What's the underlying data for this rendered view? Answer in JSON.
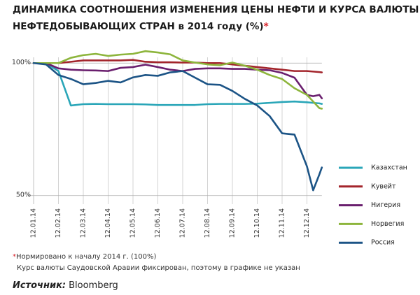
{
  "chart_data": {
    "type": "line",
    "title": [
      "ДИНАМИКА СООТНОШЕНИЯ ИЗМЕНЕНИЯ ЦЕНЫ НЕФТИ И КУРСА ВАЛЮТЫ",
      "НЕФТЕДОБЫВАЮЩИХ СТРАН в 2014 году (%)"
    ],
    "title_mark": "*",
    "footnote_mark": "*",
    "footnote": "Нормировано к началу 2014 г. (100%)",
    "note": "Курс валюты Саудовской Аравии фиксирован, поэтому в графике не указан",
    "source_label": "Источник:",
    "source": "Bloomberg",
    "x": [
      0,
      0.5,
      1,
      1.5,
      2,
      2.5,
      3,
      3.5,
      4,
      4.5,
      5,
      5.5,
      6,
      6.5,
      7,
      7.5,
      8,
      8.5,
      9,
      9.5,
      10,
      10.5,
      11,
      11.25,
      11.5,
      11.6
    ],
    "xlim": [
      0,
      11.6
    ],
    "xticks": [
      {
        "value": 0,
        "label": "12.01.14"
      },
      {
        "value": 1,
        "label": "12.02.14"
      },
      {
        "value": 2,
        "label": "12.03.14"
      },
      {
        "value": 3,
        "label": "12.04.14"
      },
      {
        "value": 4,
        "label": "12.05.14"
      },
      {
        "value": 5,
        "label": "12.06.14"
      },
      {
        "value": 6,
        "label": "12.07.14"
      },
      {
        "value": 7,
        "label": "12.08.14"
      },
      {
        "value": 8,
        "label": "12.09.14"
      },
      {
        "value": 9,
        "label": "12.10.14"
      },
      {
        "value": 10,
        "label": "12.11.14"
      },
      {
        "value": 11,
        "label": "12.12.14"
      }
    ],
    "ylim": [
      47.3,
      105
    ],
    "yticks": [
      {
        "value": 100,
        "label": "100%"
      },
      {
        "value": 50,
        "label": "50%"
      }
    ],
    "grid": true,
    "legend": "right",
    "series": [
      {
        "name": "Казахстан",
        "color": "#2aa6b8",
        "values": [
          100,
          100,
          97,
          84,
          84.5,
          84.6,
          84.5,
          84.5,
          84.5,
          84.4,
          84.2,
          84.2,
          84.2,
          84.2,
          84.5,
          84.6,
          84.6,
          84.6,
          84.7,
          85,
          85.3,
          85.5,
          85.2,
          85,
          84.8,
          84.6
        ]
      },
      {
        "name": "Кувейт",
        "color": "#a3252c",
        "values": [
          100,
          100,
          100,
          100.5,
          101,
          101,
          101,
          101,
          101.2,
          100.5,
          100.3,
          100.3,
          100.2,
          100.2,
          100,
          100,
          99.5,
          99,
          98.5,
          98,
          97.5,
          97,
          97,
          96.8,
          96.6,
          96.5
        ]
      },
      {
        "name": "Нигерия",
        "color": "#6a1f6e",
        "values": [
          100,
          100,
          98,
          97.5,
          97.3,
          97.2,
          97,
          98.2,
          98.5,
          99.4,
          98.5,
          97.5,
          97,
          97.8,
          98,
          98,
          97.8,
          97.8,
          97.5,
          97.3,
          96.3,
          94.5,
          88,
          87.5,
          88,
          86.7
        ]
      },
      {
        "name": "Норвегия",
        "color": "#8db53c",
        "values": [
          100,
          100,
          100,
          102,
          103,
          103.5,
          102.7,
          103.2,
          103.5,
          104.5,
          104,
          103.3,
          101,
          100.2,
          99.5,
          99.2,
          100.2,
          99,
          97.5,
          95.5,
          94,
          90.5,
          88,
          85.5,
          83,
          82.8
        ]
      },
      {
        "name": "Россия",
        "color": "#1c5486",
        "values": [
          100,
          99.5,
          95.5,
          94,
          92,
          92.5,
          93.3,
          92.7,
          94.6,
          95.5,
          95.2,
          96.5,
          97,
          94.5,
          92,
          91.8,
          89.5,
          86.5,
          84,
          80,
          73.5,
          73,
          61,
          52,
          58,
          60.6
        ]
      }
    ]
  }
}
